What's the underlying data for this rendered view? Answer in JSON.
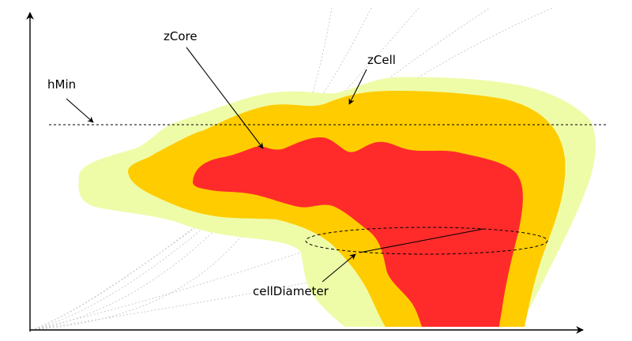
{
  "labels": {
    "z_core": "zCore",
    "z_cell": "zCell",
    "h_min": "hMin",
    "cell_diameter": "cellDiameter"
  },
  "colors": {
    "cell_outer": "#EEFCA8",
    "cell": "#FFCC00",
    "core": "#FF2B2B",
    "guide_lines": "#c8c8c8",
    "axes": "#000000"
  }
}
